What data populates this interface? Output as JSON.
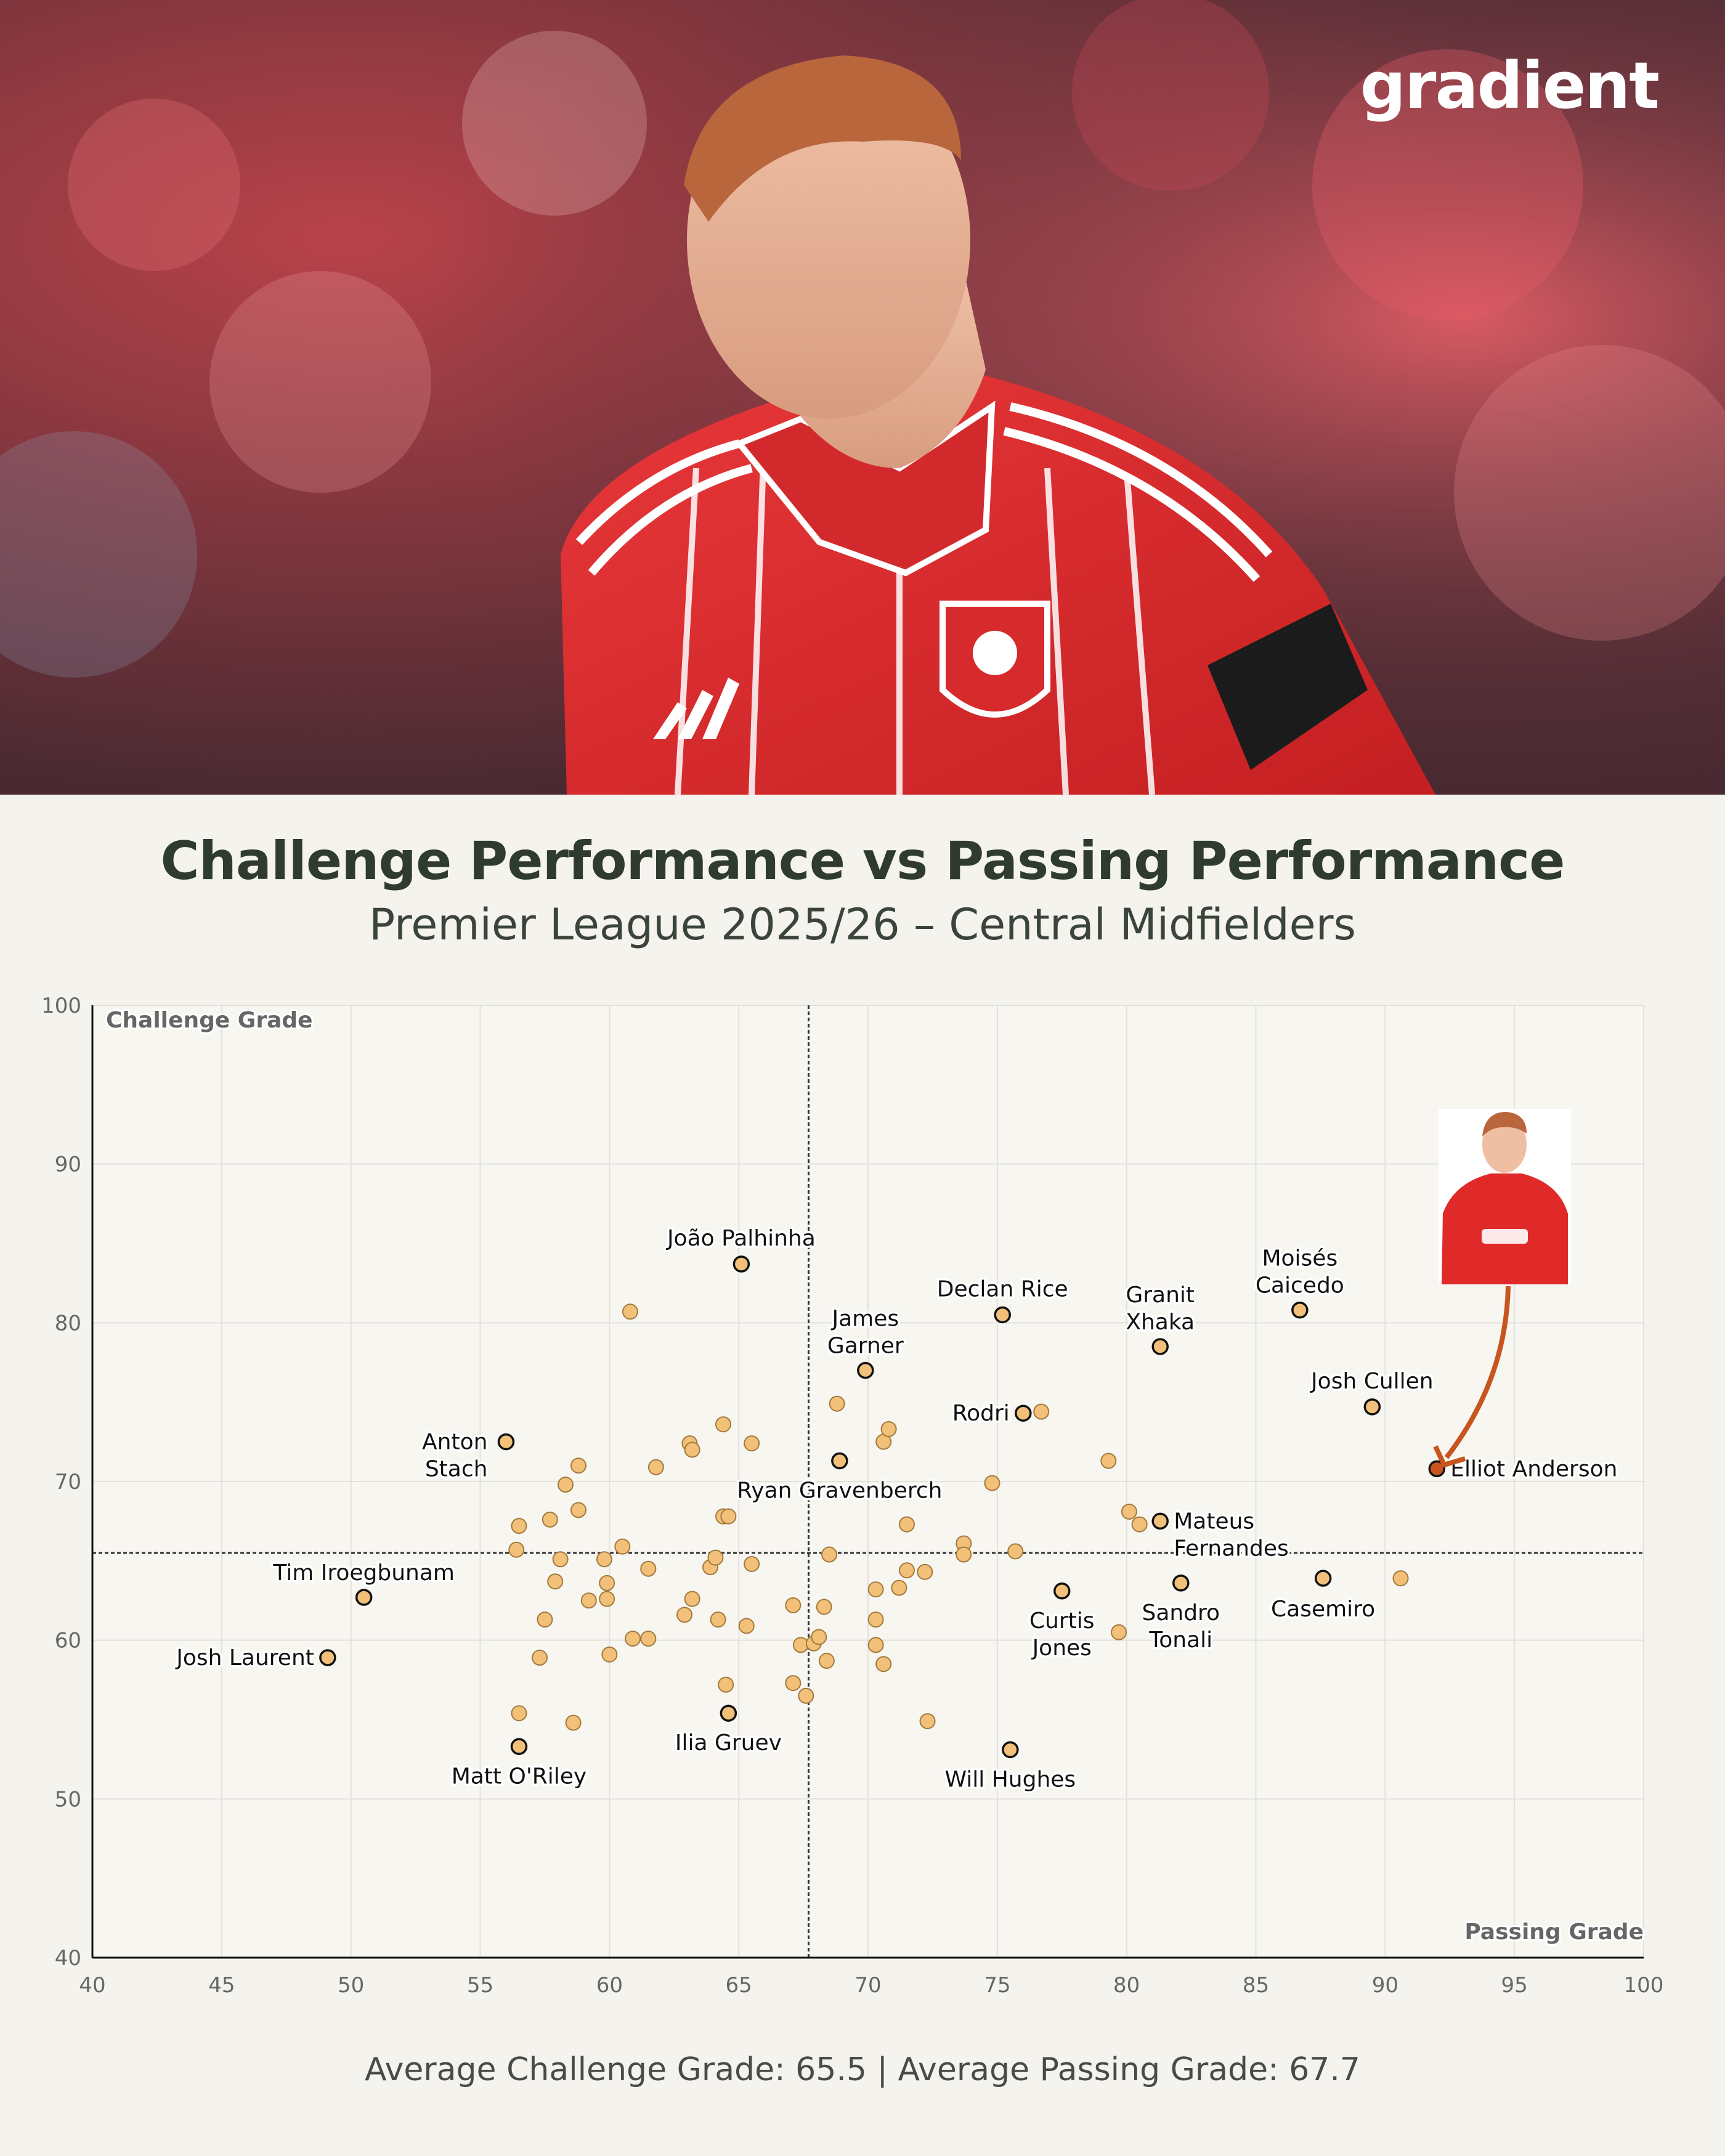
{
  "brand": {
    "logo_text": "gradient"
  },
  "header": {
    "title": "Challenge Performance vs Passing Performance",
    "subtitle": "Premier League 2025/26 – Central Midfielders"
  },
  "footer": {
    "text": "Average Challenge Grade: 65.5 | Average Passing Grade: 67.7"
  },
  "colors": {
    "point": "#f2c078",
    "highlight": "#c8551e",
    "arrow": "#c8551e",
    "kit_red": "#e02a2a",
    "background": "#f4f3ee"
  },
  "chart_data": {
    "type": "scatter",
    "xlabel": "Passing Grade",
    "ylabel": "Challenge Grade",
    "xlim": [
      40,
      100
    ],
    "ylim": [
      40,
      100
    ],
    "xticks": [
      40,
      45,
      50,
      55,
      60,
      65,
      70,
      75,
      80,
      85,
      90,
      95,
      100
    ],
    "yticks": [
      40,
      50,
      60,
      70,
      80,
      90,
      100
    ],
    "grid": true,
    "averages": {
      "challenge": 65.5,
      "passing": 67.7
    },
    "labeled_points": [
      {
        "name": "João Palhinha",
        "x": 65.1,
        "y": 83.7
      },
      {
        "name": "James Garner",
        "x": 69.9,
        "y": 77.0
      },
      {
        "name": "Declan Rice",
        "x": 75.2,
        "y": 80.5
      },
      {
        "name": "Granit Xhaka",
        "x": 81.3,
        "y": 78.5
      },
      {
        "name": "Moisés Caicedo",
        "x": 86.7,
        "y": 80.8
      },
      {
        "name": "Josh Cullen",
        "x": 89.5,
        "y": 74.7
      },
      {
        "name": "Rodri",
        "x": 76.0,
        "y": 74.3
      },
      {
        "name": "Anton Stach",
        "x": 56.0,
        "y": 72.5
      },
      {
        "name": "Ryan Gravenberch",
        "x": 68.9,
        "y": 71.3
      },
      {
        "name": "Elliot Anderson",
        "x": 92.0,
        "y": 70.8,
        "highlight": true
      },
      {
        "name": "Mateus Fernandes",
        "x": 81.3,
        "y": 67.5
      },
      {
        "name": "Tim Iroegbunam",
        "x": 50.5,
        "y": 62.7
      },
      {
        "name": "Casemiro",
        "x": 87.6,
        "y": 63.9
      },
      {
        "name": "Curtis Jones",
        "x": 77.5,
        "y": 63.1
      },
      {
        "name": "Sandro Tonali",
        "x": 82.1,
        "y": 63.6
      },
      {
        "name": "Josh Laurent",
        "x": 49.1,
        "y": 58.9
      },
      {
        "name": "Ilia Gruev",
        "x": 64.6,
        "y": 55.4
      },
      {
        "name": "Matt O'Riley",
        "x": 56.5,
        "y": 53.3
      },
      {
        "name": "Will Hughes",
        "x": 75.5,
        "y": 53.1
      }
    ],
    "points": [
      [
        60.8,
        80.7
      ],
      [
        56.5,
        67.2
      ],
      [
        56.4,
        65.7
      ],
      [
        56.5,
        55.4
      ],
      [
        57.3,
        58.9
      ],
      [
        57.5,
        61.3
      ],
      [
        57.7,
        67.6
      ],
      [
        57.9,
        63.7
      ],
      [
        58.1,
        65.1
      ],
      [
        58.3,
        69.8
      ],
      [
        58.6,
        54.8
      ],
      [
        58.8,
        71.0
      ],
      [
        58.8,
        68.2
      ],
      [
        59.2,
        62.5
      ],
      [
        59.8,
        65.1
      ],
      [
        59.9,
        62.6
      ],
      [
        59.9,
        63.6
      ],
      [
        60.0,
        59.1
      ],
      [
        60.5,
        65.9
      ],
      [
        60.9,
        60.1
      ],
      [
        61.5,
        64.5
      ],
      [
        61.5,
        60.1
      ],
      [
        61.8,
        70.9
      ],
      [
        62.9,
        61.6
      ],
      [
        63.1,
        72.4
      ],
      [
        63.2,
        62.6
      ],
      [
        63.2,
        72.0
      ],
      [
        63.9,
        64.6
      ],
      [
        64.1,
        65.2
      ],
      [
        64.2,
        61.3
      ],
      [
        64.4,
        73.6
      ],
      [
        64.4,
        67.8
      ],
      [
        64.5,
        57.2
      ],
      [
        64.6,
        67.8
      ],
      [
        65.3,
        60.9
      ],
      [
        65.5,
        72.4
      ],
      [
        65.5,
        64.8
      ],
      [
        67.1,
        62.2
      ],
      [
        67.1,
        57.3
      ],
      [
        67.4,
        59.7
      ],
      [
        67.6,
        56.5
      ],
      [
        67.9,
        59.8
      ],
      [
        68.1,
        60.2
      ],
      [
        68.3,
        62.1
      ],
      [
        68.4,
        58.7
      ],
      [
        68.5,
        65.4
      ],
      [
        68.8,
        74.9
      ],
      [
        70.3,
        63.2
      ],
      [
        70.3,
        61.3
      ],
      [
        70.3,
        59.7
      ],
      [
        70.6,
        58.5
      ],
      [
        70.6,
        72.5
      ],
      [
        70.8,
        73.3
      ],
      [
        71.2,
        63.3
      ],
      [
        71.5,
        67.3
      ],
      [
        71.5,
        64.4
      ],
      [
        72.2,
        64.3
      ],
      [
        72.3,
        54.9
      ],
      [
        73.7,
        66.1
      ],
      [
        73.7,
        65.4
      ],
      [
        74.8,
        69.9
      ],
      [
        75.7,
        65.6
      ],
      [
        76.7,
        74.4
      ],
      [
        79.3,
        71.3
      ],
      [
        79.7,
        60.5
      ],
      [
        80.1,
        68.1
      ],
      [
        80.5,
        67.3
      ],
      [
        90.6,
        63.9
      ]
    ]
  }
}
